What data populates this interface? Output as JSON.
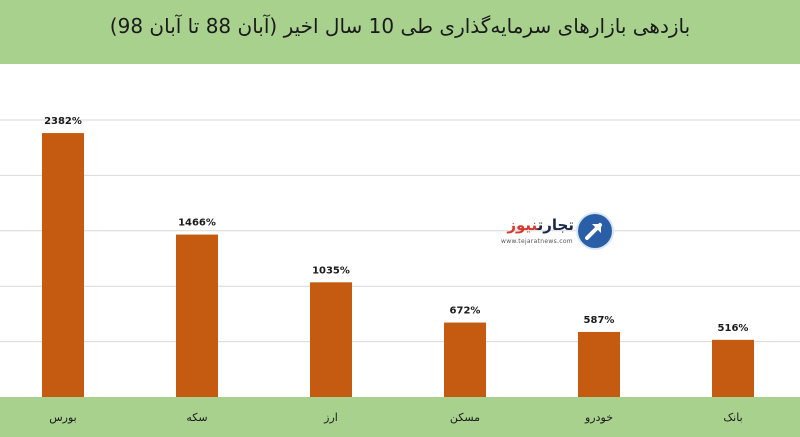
{
  "chart_data": {
    "type": "bar",
    "title": "بازدهی بازارهای سرمایه‌گذاری طی 10 سال اخیر (آبان 88 تا آبان 98)",
    "categories": [
      "بورس",
      "سکه",
      "ارز",
      "مسکن",
      "خودرو",
      "بانک"
    ],
    "values": [
      2382,
      1466,
      1035,
      672,
      587,
      516
    ],
    "data_labels": [
      "2382%",
      "1466%",
      "1035%",
      "672%",
      "587%",
      "516%"
    ],
    "ylim": [
      0,
      2500
    ],
    "grid": true,
    "bar_color": "#c55a11",
    "header_color": "#a9d18e"
  },
  "logo": {
    "name_part1": "تجارت",
    "name_part2": "نیوز",
    "url": "www.tejaratnews.com",
    "icon": "tejarat-news-arrow-icon"
  }
}
